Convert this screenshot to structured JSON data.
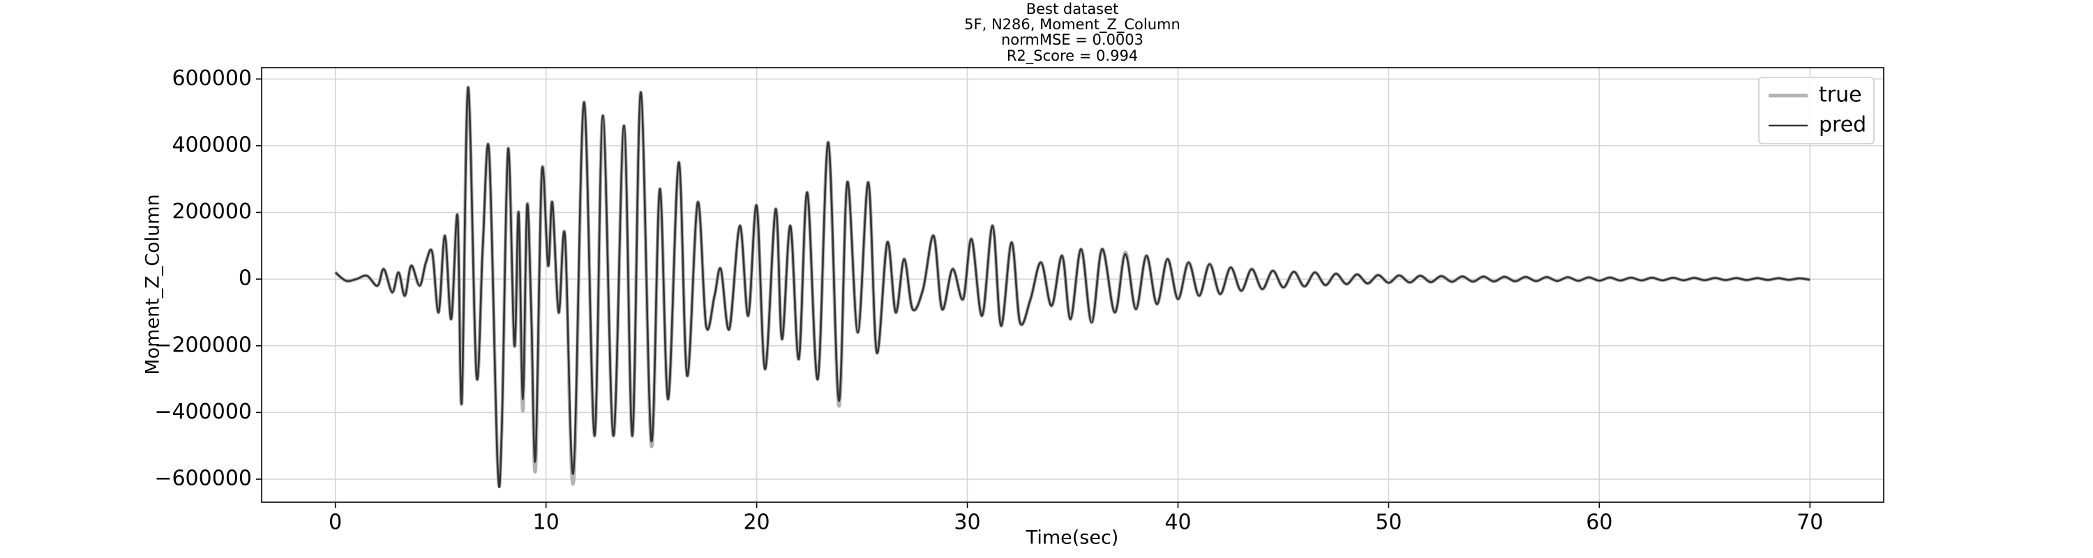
{
  "chart_data": {
    "type": "line",
    "title": "Best dataset",
    "subtitle": [
      "5F, N286, Moment_Z_Column",
      "normMSE = 0.0003",
      "R2_Score = 0.994"
    ],
    "xlabel": "Time(sec)",
    "ylabel": "Moment_Z_Column",
    "x": [
      0,
      0.5,
      1,
      1.5,
      2,
      2.3,
      2.7,
      3,
      3.3,
      3.6,
      4,
      4.3,
      4.6,
      4.9,
      5.2,
      5.5,
      5.8,
      6.0,
      6.3,
      6.7,
      7.0,
      7.3,
      7.7,
      7.9,
      8.2,
      8.5,
      8.7,
      8.9,
      9.1,
      9.3,
      9.5,
      9.8,
      10.1,
      10.3,
      10.6,
      10.9,
      11.3,
      11.8,
      12.3,
      12.7,
      13.2,
      13.7,
      14.1,
      14.5,
      15.0,
      15.4,
      15.8,
      16.3,
      16.7,
      17.2,
      17.6,
      18.0,
      18.3,
      18.7,
      19.2,
      19.6,
      20.0,
      20.4,
      20.9,
      21.2,
      21.6,
      22.0,
      22.4,
      22.9,
      23.4,
      23.9,
      24.3,
      24.8,
      25.3,
      25.7,
      26.2,
      26.6,
      27.0,
      27.4,
      27.9,
      28.4,
      28.8,
      29.3,
      29.8,
      30.2,
      30.7,
      31.2,
      31.6,
      32.1,
      32.5,
      33.0,
      33.5,
      34.0,
      34.5,
      34.9,
      35.4,
      35.9,
      36.4,
      37,
      37.5,
      38,
      38.5,
      39,
      39.5,
      40,
      40.5,
      41,
      41.5,
      42,
      42.5,
      43,
      43.5,
      44,
      44.5,
      45,
      45.5,
      46,
      46.5,
      47,
      47.5,
      48,
      48.5,
      49,
      49.5,
      50,
      50.5,
      51,
      51.5,
      52,
      52.5,
      53,
      53.5,
      54,
      54.5,
      55,
      55.5,
      56,
      56.5,
      57,
      57.5,
      58,
      58.5,
      59,
      59.5,
      60,
      60.5,
      61,
      61.5,
      62,
      62.5,
      63,
      63.5,
      64,
      64.5,
      65,
      65.5,
      66,
      66.5,
      67,
      67.5,
      68,
      68.5,
      69,
      69.5,
      70
    ],
    "series": [
      {
        "name": "true",
        "color": "#b3b3b3",
        "width": 5,
        "values": [
          20000,
          -5000,
          0,
          10000,
          -20000,
          30000,
          -40000,
          20000,
          -50000,
          40000,
          -20000,
          50000,
          80000,
          -100000,
          130000,
          -120000,
          190000,
          -370000,
          575000,
          -290000,
          100000,
          380000,
          -550000,
          -450000,
          390000,
          -200000,
          200000,
          -395000,
          220000,
          -100000,
          -570000,
          320000,
          40000,
          230000,
          -100000,
          130000,
          -610000,
          530000,
          -470000,
          490000,
          -470000,
          460000,
          -470000,
          560000,
          -500000,
          270000,
          -360000,
          350000,
          -290000,
          230000,
          -140000,
          -50000,
          30000,
          -150000,
          160000,
          -110000,
          220000,
          -270000,
          210000,
          -180000,
          160000,
          -240000,
          260000,
          -300000,
          410000,
          -380000,
          290000,
          -160000,
          290000,
          -220000,
          110000,
          -100000,
          60000,
          -90000,
          -30000,
          130000,
          -90000,
          30000,
          -60000,
          120000,
          -110000,
          160000,
          -140000,
          110000,
          -130000,
          -60000,
          50000,
          -80000,
          70000,
          -120000,
          90000,
          -130000,
          90000,
          -100000,
          80000,
          -90000,
          70000,
          -75000,
          60000,
          -60000,
          50000,
          -50000,
          45000,
          -45000,
          35000,
          -35000,
          30000,
          -30000,
          25000,
          -25000,
          22000,
          -22000,
          20000,
          -18000,
          16000,
          -15000,
          14000,
          -13000,
          12000,
          -11000,
          11000,
          -10000,
          10000,
          -9000,
          9000,
          -8000,
          8000,
          -7500,
          7500,
          -7000,
          7000,
          -6500,
          6500,
          -6000,
          6000,
          -5500,
          5500,
          -5000,
          5000,
          -4500,
          4500,
          -4200,
          4200,
          -4000,
          4000,
          -3800,
          3800,
          -3500,
          3500,
          -3200,
          3200,
          -3000,
          3000,
          -2800,
          2800,
          -2500,
          2500,
          -2200,
          2200,
          -2000
        ]
      },
      {
        "name": "pred",
        "color": "#333333",
        "width": 2.6,
        "values": [
          20000,
          -5000,
          0,
          10000,
          -20000,
          30000,
          -40000,
          20000,
          -50000,
          40000,
          -20000,
          50000,
          80000,
          -100000,
          130000,
          -120000,
          190000,
          -370000,
          575000,
          -290000,
          100000,
          380000,
          -555000,
          -450000,
          390000,
          -200000,
          200000,
          -360000,
          220000,
          -100000,
          -540000,
          320000,
          40000,
          230000,
          -100000,
          130000,
          -580000,
          530000,
          -470000,
          490000,
          -470000,
          460000,
          -470000,
          560000,
          -485000,
          270000,
          -360000,
          350000,
          -290000,
          230000,
          -140000,
          -50000,
          30000,
          -150000,
          160000,
          -110000,
          220000,
          -270000,
          210000,
          -180000,
          160000,
          -240000,
          260000,
          -300000,
          410000,
          -365000,
          290000,
          -160000,
          290000,
          -220000,
          110000,
          -100000,
          60000,
          -90000,
          -30000,
          130000,
          -90000,
          30000,
          -60000,
          120000,
          -110000,
          160000,
          -140000,
          110000,
          -130000,
          -60000,
          50000,
          -80000,
          70000,
          -120000,
          90000,
          -130000,
          90000,
          -100000,
          75000,
          -90000,
          70000,
          -75000,
          60000,
          -60000,
          50000,
          -50000,
          45000,
          -45000,
          35000,
          -35000,
          30000,
          -30000,
          25000,
          -25000,
          22000,
          -22000,
          20000,
          -18000,
          16000,
          -15000,
          14000,
          -13000,
          12000,
          -11000,
          11000,
          -10000,
          10000,
          -9000,
          9000,
          -8000,
          8000,
          -7500,
          7500,
          -7000,
          7000,
          -6500,
          6500,
          -6000,
          6000,
          -5500,
          5500,
          -5000,
          5000,
          -4500,
          4500,
          -4200,
          4200,
          -4000,
          4000,
          -3800,
          3800,
          -3500,
          3500,
          -3200,
          3200,
          -3000,
          3000,
          -2800,
          2800,
          -2500,
          2500,
          -2200,
          2200,
          -2000
        ]
      }
    ],
    "xlim": [
      -3.5,
      73.5
    ],
    "ylim": [
      -669000,
      634000
    ],
    "xticks": [
      0,
      10,
      20,
      30,
      40,
      50,
      60,
      70
    ],
    "yticks": [
      {
        "value": -600000,
        "label": "−600000"
      },
      {
        "value": -400000,
        "label": "−400000"
      },
      {
        "value": -200000,
        "label": "−200000"
      },
      0,
      200000,
      400000,
      600000
    ],
    "grid": true,
    "legend": "upper right"
  }
}
